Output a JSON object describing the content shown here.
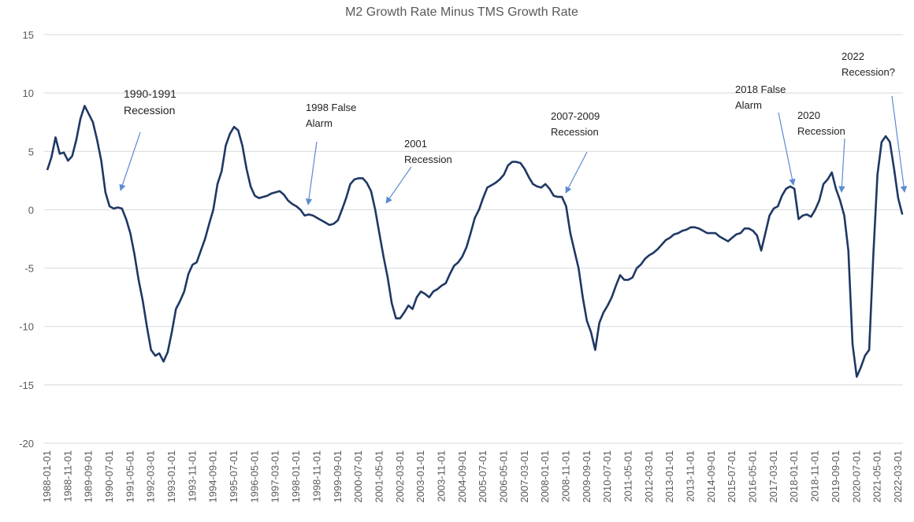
{
  "chart_data": {
    "type": "line",
    "title": "M2 Growth Rate Minus TMS Growth Rate",
    "categories": [
      "1988-01-01",
      null,
      null,
      null,
      null,
      "1988-11-01",
      null,
      null,
      null,
      null,
      "1989-09-01",
      null,
      null,
      null,
      null,
      "1990-07-01",
      null,
      null,
      null,
      null,
      "1991-05-01",
      null,
      null,
      null,
      null,
      "1992-03-01",
      null,
      null,
      null,
      null,
      "1993-01-01",
      null,
      null,
      null,
      null,
      "1993-11-01",
      null,
      null,
      null,
      null,
      "1994-09-01",
      null,
      null,
      null,
      null,
      "1995-07-01",
      null,
      null,
      null,
      null,
      "1996-05-01",
      null,
      null,
      null,
      null,
      "1997-03-01",
      null,
      null,
      null,
      null,
      "1998-01-01",
      null,
      null,
      null,
      null,
      "1998-11-01",
      null,
      null,
      null,
      null,
      "1999-09-01",
      null,
      null,
      null,
      null,
      "2000-07-01",
      null,
      null,
      null,
      null,
      "2001-05-01",
      null,
      null,
      null,
      null,
      "2002-03-01",
      null,
      null,
      null,
      null,
      "2003-01-01",
      null,
      null,
      null,
      null,
      "2003-11-01",
      null,
      null,
      null,
      null,
      "2004-09-01",
      null,
      null,
      null,
      null,
      "2005-07-01",
      null,
      null,
      null,
      null,
      "2006-05-01",
      null,
      null,
      null,
      null,
      "2007-03-01",
      null,
      null,
      null,
      null,
      "2008-01-01",
      null,
      null,
      null,
      null,
      "2008-11-01",
      null,
      null,
      null,
      null,
      "2009-09-01",
      null,
      null,
      null,
      null,
      "2010-07-01",
      null,
      null,
      null,
      null,
      "2011-05-01",
      null,
      null,
      null,
      null,
      "2012-03-01",
      null,
      null,
      null,
      null,
      "2013-01-01",
      null,
      null,
      null,
      null,
      "2013-11-01",
      null,
      null,
      null,
      null,
      "2014-09-01",
      null,
      null,
      null,
      null,
      "2015-07-01",
      null,
      null,
      null,
      null,
      "2016-05-01",
      null,
      null,
      null,
      null,
      "2017-03-01",
      null,
      null,
      null,
      null,
      "2018-01-01",
      null,
      null,
      null,
      null,
      "2018-11-01",
      null,
      null,
      null,
      null,
      "2019-09-01",
      null,
      null,
      null,
      null,
      "2020-07-01",
      null,
      null,
      null,
      null,
      "2021-05-01",
      null,
      null,
      null,
      null,
      "2022-03-01",
      null
    ],
    "values": [
      3.4,
      4.5,
      6.2,
      4.8,
      4.9,
      4.2,
      4.6,
      6.0,
      7.8,
      8.9,
      8.2,
      7.5,
      6.0,
      4.2,
      1.5,
      0.3,
      0.1,
      0.2,
      0.1,
      -0.8,
      -2.0,
      -3.8,
      -6.0,
      -7.8,
      -10.0,
      -12.0,
      -12.5,
      -12.3,
      -13.0,
      -12.2,
      -10.5,
      -8.5,
      -7.8,
      -7.0,
      -5.5,
      -4.7,
      -4.5,
      -3.5,
      -2.5,
      -1.2,
      0.0,
      2.2,
      3.3,
      5.5,
      6.5,
      7.1,
      6.8,
      5.5,
      3.5,
      2.0,
      1.2,
      1.0,
      1.1,
      1.2,
      1.4,
      1.5,
      1.6,
      1.3,
      0.8,
      0.5,
      0.3,
      0.0,
      -0.5,
      -0.4,
      -0.5,
      -0.7,
      -0.9,
      -1.1,
      -1.3,
      -1.2,
      -0.9,
      0.0,
      1.0,
      2.2,
      2.6,
      2.7,
      2.7,
      2.3,
      1.6,
      0.0,
      -2.0,
      -4.0,
      -5.8,
      -8.0,
      -9.3,
      -9.3,
      -8.8,
      -8.2,
      -8.5,
      -7.5,
      -7.0,
      -7.2,
      -7.5,
      -7.0,
      -6.8,
      -6.5,
      -6.3,
      -5.5,
      -4.8,
      -4.5,
      -4.0,
      -3.2,
      -2.0,
      -0.7,
      0.0,
      1.0,
      1.9,
      2.1,
      2.3,
      2.6,
      3.0,
      3.8,
      4.1,
      4.1,
      4.0,
      3.5,
      2.8,
      2.2,
      2.0,
      1.9,
      2.2,
      1.8,
      1.2,
      1.1,
      1.1,
      0.3,
      -2.0,
      -3.5,
      -5.0,
      -7.5,
      -9.5,
      -10.5,
      -12.0,
      -9.7,
      -8.8,
      -8.2,
      -7.5,
      -6.5,
      -5.6,
      -6.0,
      -6.0,
      -5.8,
      -5.0,
      -4.7,
      -4.2,
      -3.9,
      -3.7,
      -3.4,
      -3.0,
      -2.6,
      -2.4,
      -2.1,
      -2.0,
      -1.8,
      -1.7,
      -1.5,
      -1.5,
      -1.6,
      -1.8,
      -2.0,
      -2.0,
      -2.0,
      -2.3,
      -2.5,
      -2.7,
      -2.4,
      -2.1,
      -2.0,
      -1.6,
      -1.6,
      -1.8,
      -2.2,
      -3.5,
      -2.0,
      -0.5,
      0.1,
      0.3,
      1.2,
      1.8,
      2.0,
      1.8,
      -0.8,
      -0.5,
      -0.4,
      -0.6,
      0.0,
      0.8,
      2.2,
      2.6,
      3.2,
      1.8,
      0.8,
      -0.5,
      -3.5,
      -11.5,
      -14.3,
      -13.5,
      -12.5,
      -12.0,
      -4.0,
      3.0,
      5.8,
      6.3,
      5.8,
      3.5,
      1.0,
      -0.4
    ],
    "color": "#1f3864",
    "ylim": [
      -20,
      15
    ],
    "yticks": [
      -20,
      -15,
      -10,
      -5,
      0,
      5,
      10,
      15
    ],
    "grid": true,
    "annotations": [
      {
        "lines": [
          "1990-1991",
          "Recession"
        ]
      },
      {
        "lines": [
          "1998 False",
          "Alarm"
        ]
      },
      {
        "lines": [
          "2001",
          "Recession"
        ]
      },
      {
        "lines": [
          "2007-2009",
          "Recession"
        ]
      },
      {
        "lines": [
          "2018 False",
          "Alarm"
        ]
      },
      {
        "lines": [
          "2020",
          "Recession"
        ]
      },
      {
        "lines": [
          "2022",
          "Recession?"
        ]
      }
    ]
  }
}
